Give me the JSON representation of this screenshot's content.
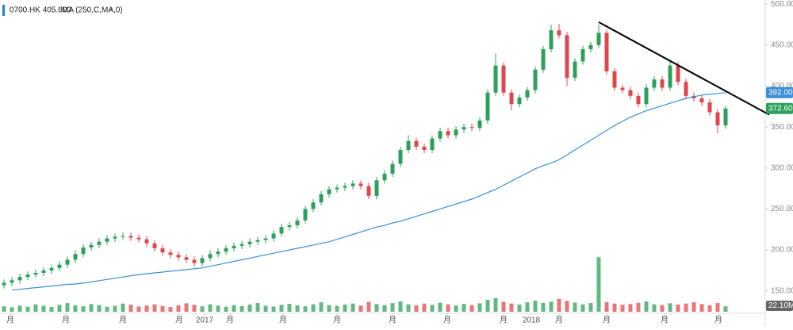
{
  "chart_data": {
    "type": "candlestick",
    "symbol_label": "0700.HK 405.800",
    "close_icon": "×",
    "up_color": "#2ca05a",
    "down_color": "#e0474c",
    "xlim": [
      0,
      96.5
    ],
    "ylim": [
      142,
      505
    ],
    "vlim": [
      0,
      320
    ],
    "yticks": [
      {
        "value": 150,
        "label": "150.000"
      },
      {
        "value": 200,
        "label": "200.000"
      },
      {
        "value": 250,
        "label": "250.000"
      },
      {
        "value": 300,
        "label": "300.000"
      },
      {
        "value": 350,
        "label": "350.000"
      },
      {
        "value": 400,
        "label": "400.000"
      },
      {
        "value": 450,
        "label": "450.000"
      },
      {
        "value": 500,
        "label": "500.000"
      }
    ],
    "xticks": [
      {
        "value": 1.3,
        "label": "月"
      },
      {
        "value": 8.3,
        "label": "月"
      },
      {
        "value": 15.5,
        "label": "月"
      },
      {
        "value": 22.6,
        "label": "月"
      },
      {
        "value": 25.8,
        "label": "2017"
      },
      {
        "value": 29,
        "label": "月"
      },
      {
        "value": 35.7,
        "label": "月"
      },
      {
        "value": 42.5,
        "label": "月"
      },
      {
        "value": 49.5,
        "label": "月"
      },
      {
        "value": 56.4,
        "label": "月"
      },
      {
        "value": 63.5,
        "label": "月"
      },
      {
        "value": 67,
        "label": "2018"
      },
      {
        "value": 70.5,
        "label": "月"
      },
      {
        "value": 76.5,
        "label": "月"
      },
      {
        "value": 83.8,
        "label": "月"
      },
      {
        "value": 90.6,
        "label": "月"
      }
    ],
    "open": [
      157,
      160,
      163,
      167,
      170,
      172,
      175,
      178,
      182,
      188,
      195,
      203,
      206,
      210,
      214,
      216,
      217,
      215,
      213,
      208,
      202,
      197,
      194,
      191,
      188,
      184,
      190,
      195,
      198,
      202,
      205,
      207,
      210,
      212,
      214,
      220,
      228,
      230,
      236,
      250,
      258,
      268,
      274,
      276,
      278,
      281,
      278,
      266,
      285,
      293,
      305,
      322,
      333,
      326,
      322,
      336,
      345,
      340,
      347,
      350,
      349,
      358,
      392,
      425,
      392,
      378,
      386,
      395,
      420,
      445,
      468,
      462,
      410,
      430,
      445,
      450,
      465,
      418,
      398,
      395,
      388,
      378,
      398,
      408,
      398,
      425,
      405,
      388,
      385,
      380,
      368,
      352
    ],
    "high": [
      164,
      167,
      171,
      174,
      176,
      179,
      182,
      186,
      192,
      199,
      207,
      210,
      214,
      218,
      220,
      221,
      221,
      219,
      217,
      212,
      206,
      201,
      198,
      195,
      192,
      194,
      199,
      202,
      206,
      209,
      211,
      214,
      216,
      218,
      224,
      232,
      234,
      240,
      254,
      262,
      272,
      278,
      280,
      282,
      285,
      285,
      282,
      289,
      297,
      309,
      326,
      340,
      337,
      330,
      340,
      349,
      349,
      351,
      354,
      354,
      362,
      396,
      440,
      429,
      396,
      390,
      399,
      424,
      449,
      475,
      476,
      466,
      434,
      449,
      454,
      475,
      469,
      422,
      402,
      399,
      392,
      402,
      412,
      412,
      432,
      429,
      409,
      392,
      389,
      384,
      372,
      376
    ],
    "low": [
      153,
      156,
      159,
      163,
      166,
      168,
      171,
      174,
      178,
      184,
      191,
      199,
      202,
      206,
      210,
      212,
      211,
      209,
      204,
      198,
      193,
      190,
      187,
      184,
      180,
      180,
      186,
      191,
      194,
      198,
      201,
      203,
      206,
      208,
      210,
      216,
      224,
      226,
      232,
      246,
      254,
      264,
      270,
      272,
      274,
      274,
      262,
      262,
      281,
      289,
      301,
      318,
      322,
      318,
      318,
      332,
      336,
      336,
      343,
      345,
      345,
      354,
      388,
      388,
      370,
      374,
      382,
      391,
      416,
      441,
      458,
      400,
      406,
      426,
      441,
      446,
      414,
      394,
      391,
      384,
      374,
      374,
      394,
      394,
      394,
      401,
      384,
      381,
      376,
      364,
      342,
      348
    ],
    "close": [
      160,
      163,
      167,
      170,
      172,
      175,
      178,
      182,
      188,
      195,
      203,
      206,
      210,
      214,
      216,
      217,
      215,
      213,
      208,
      202,
      197,
      194,
      191,
      188,
      184,
      190,
      195,
      198,
      202,
      205,
      207,
      210,
      212,
      214,
      220,
      228,
      230,
      236,
      250,
      258,
      268,
      274,
      276,
      278,
      281,
      278,
      266,
      285,
      293,
      305,
      322,
      333,
      326,
      322,
      336,
      345,
      340,
      347,
      350,
      349,
      358,
      392,
      425,
      392,
      378,
      386,
      395,
      420,
      445,
      468,
      462,
      410,
      430,
      445,
      450,
      465,
      418,
      398,
      395,
      388,
      378,
      398,
      408,
      398,
      425,
      405,
      388,
      385,
      380,
      368,
      352,
      372.6
    ],
    "last_close_label": "372.600",
    "volume": [
      22,
      18,
      25,
      20,
      30,
      24,
      19,
      28,
      35,
      26,
      22,
      31,
      27,
      20,
      24,
      33,
      29,
      21,
      25,
      30,
      23,
      19,
      26,
      34,
      28,
      22,
      30,
      25,
      20,
      27,
      23,
      29,
      35,
      24,
      21,
      28,
      32,
      26,
      22,
      30,
      38,
      27,
      24,
      29,
      33,
      25,
      40,
      31,
      27,
      35,
      42,
      30,
      26,
      33,
      28,
      36,
      30,
      25,
      32,
      27,
      34,
      48,
      55,
      40,
      33,
      29,
      38,
      45,
      36,
      41,
      52,
      44,
      37,
      30,
      35,
      220,
      39,
      33,
      28,
      31,
      36,
      42,
      30,
      27,
      34,
      29,
      33,
      38,
      31,
      26,
      35,
      22.1
    ],
    "volume_label": "22.10M",
    "series": [
      {
        "name": "MA (250,C,MA,0)",
        "color": "#3a8fd9",
        "value_label": "392.003",
        "values": [
          null,
          151,
          152,
          153,
          154,
          155,
          156,
          157,
          158,
          158.5,
          159.5,
          161,
          162.5,
          164,
          165.5,
          167,
          168.5,
          170,
          171,
          172,
          173,
          174,
          175,
          176,
          177,
          178,
          180,
          182,
          184,
          186,
          188,
          190,
          192,
          194,
          196,
          198,
          200,
          202,
          204,
          206,
          208,
          210,
          213,
          216,
          219,
          222,
          225,
          228,
          230,
          233,
          235,
          238,
          241,
          244,
          247,
          250,
          253,
          256,
          259,
          262,
          266,
          270,
          274,
          279,
          284,
          289,
          294,
          299,
          303,
          306,
          310,
          316,
          322,
          328,
          334,
          340,
          346,
          352,
          357,
          362,
          366,
          370,
          373,
          376,
          379,
          382,
          385,
          387,
          389,
          390,
          391,
          392.003
        ]
      }
    ],
    "trendline": {
      "color": "#000000",
      "x": [
        75.5,
        97
      ],
      "y": [
        478,
        365
      ]
    }
  }
}
